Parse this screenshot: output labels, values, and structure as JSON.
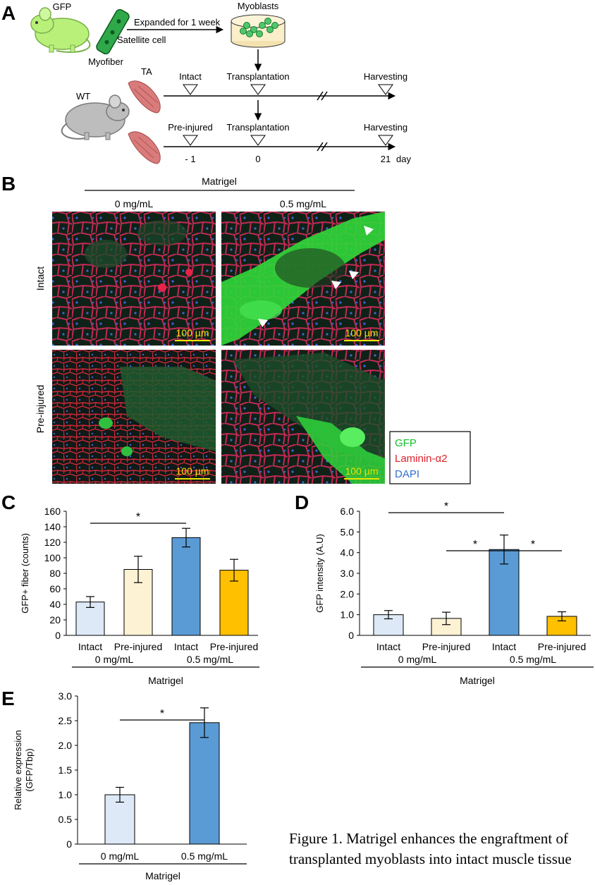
{
  "panel_letters": {
    "a": "A",
    "b": "B",
    "c": "C",
    "d": "D",
    "e": "E"
  },
  "schematic": {
    "gfp_mouse_label": "GFP",
    "myofiber_label": "Myofiber",
    "satellite_label": "Satellite cell",
    "expanded_label": "Expanded for 1 week",
    "myoblasts_label": "Myoblasts",
    "wt_label": "WT",
    "ta_label": "TA",
    "row1": {
      "start": "Intact",
      "mid": "Transplantation",
      "end": "Harvesting"
    },
    "row2": {
      "start": "Pre-injured",
      "mid": "Transplantation",
      "end": "Harvesting"
    },
    "days": {
      "d1": "- 1",
      "d2": "0",
      "d3": "21",
      "unit": "day"
    }
  },
  "micrographs": {
    "group_label": "Matrigel",
    "col1": "0 mg/mL",
    "col2": "0.5 mg/mL",
    "row1": "Intact",
    "row2": "Pre-injured",
    "scale_bar": "100 µm",
    "legend": {
      "gfp": "GFP",
      "laminin": "Laminin-α2",
      "dapi": "DAPI"
    },
    "colors": {
      "gfp": "#12c02a",
      "laminin": "#e0202a",
      "dapi": "#2f6fd0"
    }
  },
  "chart_data": [
    {
      "id": "C",
      "type": "bar",
      "ylabel": "GFP+ fiber (counts)",
      "ylim": [
        0,
        160
      ],
      "yticks": [
        "0",
        "20",
        "40",
        "60",
        "80",
        "100",
        "120",
        "140",
        "160"
      ],
      "categories": [
        "Intact",
        "Pre-injured",
        "Intact",
        "Pre-injured"
      ],
      "values": [
        43,
        85,
        126,
        84
      ],
      "errors": [
        7,
        17,
        12,
        14
      ],
      "colors": [
        "#dde9f7",
        "#fdf2d4",
        "#5b9bd5",
        "#ffc000"
      ],
      "groups": [
        "0 mg/mL",
        "0.5 mg/mL"
      ],
      "group_title": "Matrigel",
      "significance": "*"
    },
    {
      "id": "D",
      "type": "bar",
      "ylabel": "GFP intensity (A.U)",
      "ylim": [
        0,
        6
      ],
      "yticks": [
        "0",
        "1.0",
        "2.0",
        "3.0",
        "4.0",
        "5.0",
        "6.0"
      ],
      "categories": [
        "Intact",
        "Pre-injured",
        "Intact",
        "Pre-injured"
      ],
      "values": [
        1.0,
        0.82,
        4.15,
        0.92
      ],
      "errors": [
        0.2,
        0.3,
        0.7,
        0.22
      ],
      "colors": [
        "#dde9f7",
        "#fdf2d4",
        "#5b9bd5",
        "#ffc000"
      ],
      "groups": [
        "0 mg/mL",
        "0.5 mg/mL"
      ],
      "group_title": "Matrigel",
      "significance": "*"
    },
    {
      "id": "E",
      "type": "bar",
      "ylabel": "Relative expression",
      "ylabel2": "(GFP/Tbp)",
      "ylim": [
        0,
        3
      ],
      "yticks": [
        "0",
        "0.5",
        "1.0",
        "1.5",
        "2.0",
        "2.5",
        "3.0"
      ],
      "categories": [
        "0 mg/mL",
        "0.5 mg/mL"
      ],
      "values": [
        1.0,
        2.46
      ],
      "errors": [
        0.15,
        0.3
      ],
      "colors": [
        "#dde9f7",
        "#5b9bd5"
      ],
      "group_title": "Matrigel",
      "significance": "*"
    }
  ],
  "caption": {
    "line1": "Figure 1. Matrigel enhances the engraftment of",
    "line2": "transplanted myoblasts into intact muscle tissue"
  }
}
